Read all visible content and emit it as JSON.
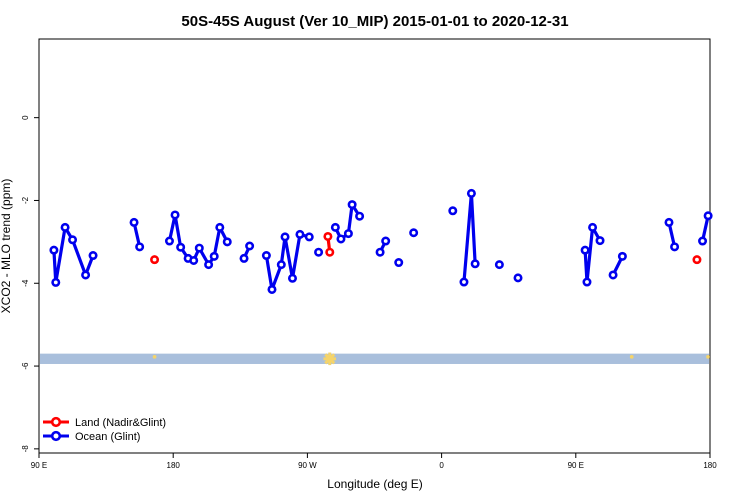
{
  "chart_data": {
    "type": "scatter",
    "title": "50S-45S August (Ver 10_MIP)   2015-01-01 to 2020-12-31",
    "xlabel": "Longitude (deg E)",
    "ylabel": "XCO2 - MLO trend (ppm)",
    "xlim": [
      90,
      450
    ],
    "ylim": [
      -8.1,
      1.9
    ],
    "x_ticks": [
      {
        "value": 90,
        "label": "90 E"
      },
      {
        "value": 162,
        "label": "180"
      },
      {
        "value": 234,
        "label": "90 W"
      },
      {
        "value": 306,
        "label": "0"
      },
      {
        "value": 378,
        "label": "90 E"
      },
      {
        "value": 450,
        "label": "180"
      }
    ],
    "y_ticks": [
      {
        "value": 0,
        "label": "0"
      },
      {
        "value": -2,
        "label": "-2"
      },
      {
        "value": -4,
        "label": "-4"
      },
      {
        "value": -6,
        "label": "-6"
      },
      {
        "value": -8,
        "label": "-8"
      }
    ],
    "grid": false,
    "legend_position": "bottom-left",
    "band": {
      "y_from": -5.7,
      "y_to": -5.95,
      "color": "#a9bfdc"
    },
    "band_markers": [
      {
        "x": 152,
        "size": 1,
        "color": "#f5d46a"
      },
      {
        "x": 246,
        "size": 3,
        "color": "#f5d46a"
      },
      {
        "x": 408,
        "size": 1,
        "color": "#f5d46a"
      },
      {
        "x": 452,
        "size": 1,
        "color": "#f5d46a"
      }
    ],
    "series": [
      {
        "name": "Land (Nadir&Glint)",
        "color": "#ff0000",
        "segments": [
          [
            [
              152,
              -3.43
            ]
          ],
          [
            [
              245,
              -2.87
            ],
            [
              246,
              -3.25
            ]
          ],
          [
            [
              443,
              -3.43
            ]
          ]
        ]
      },
      {
        "name": "Ocean (Glint)",
        "color": "#0000ee",
        "segments": [
          [
            [
              98,
              -3.2
            ],
            [
              99,
              -3.98
            ],
            [
              104,
              -2.65
            ],
            [
              108,
              -2.95
            ],
            [
              115,
              -3.8
            ],
            [
              119,
              -3.33
            ]
          ],
          [
            [
              141,
              -2.53
            ],
            [
              144,
              -3.12
            ]
          ],
          [
            [
              160,
              -2.98
            ],
            [
              163,
              -2.35
            ],
            [
              166,
              -3.13
            ],
            [
              170,
              -3.4
            ],
            [
              173,
              -3.45
            ],
            [
              176,
              -3.15
            ],
            [
              181,
              -3.55
            ],
            [
              184,
              -3.35
            ],
            [
              187,
              -2.65
            ],
            [
              191,
              -3.0
            ]
          ],
          [
            [
              200,
              -3.4
            ],
            [
              203,
              -3.1
            ]
          ],
          [
            [
              212,
              -3.33
            ],
            [
              215,
              -4.15
            ],
            [
              220,
              -3.55
            ],
            [
              222,
              -2.88
            ],
            [
              226,
              -3.88
            ],
            [
              230,
              -2.82
            ],
            [
              235,
              -2.88
            ]
          ],
          [
            [
              240,
              -3.25
            ]
          ],
          [
            [
              249,
              -2.65
            ],
            [
              252,
              -2.93
            ],
            [
              256,
              -2.8
            ],
            [
              258,
              -2.1
            ],
            [
              262,
              -2.38
            ]
          ],
          [
            [
              273,
              -3.25
            ],
            [
              276,
              -2.98
            ]
          ],
          [
            [
              283,
              -3.5
            ]
          ],
          [
            [
              291,
              -2.78
            ]
          ],
          [
            [
              312,
              -2.25
            ]
          ],
          [
            [
              318,
              -3.97
            ],
            [
              322,
              -1.83
            ],
            [
              324,
              -3.53
            ]
          ],
          [
            [
              337,
              -3.55
            ]
          ],
          [
            [
              347,
              -3.87
            ]
          ],
          [
            [
              383,
              -3.2
            ],
            [
              384,
              -3.97
            ],
            [
              387,
              -2.65
            ],
            [
              391,
              -2.97
            ]
          ],
          [
            [
              398,
              -3.8
            ],
            [
              403,
              -3.35
            ]
          ],
          [
            [
              428,
              -2.53
            ],
            [
              431,
              -3.12
            ]
          ],
          [
            [
              446,
              -2.98
            ],
            [
              449,
              -2.37
            ]
          ]
        ]
      }
    ]
  }
}
